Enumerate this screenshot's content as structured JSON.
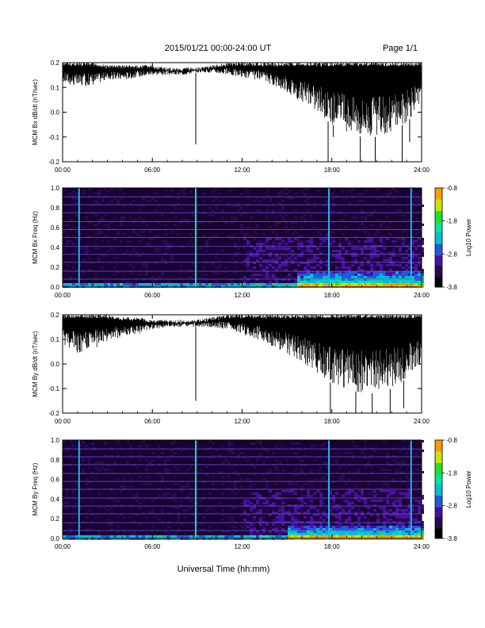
{
  "header": {
    "title": "2015/01/21  00:00-24:00 UT",
    "page": "Page 1/1"
  },
  "footer": {
    "xlabel": "Universal Time (hh:mm)"
  },
  "colors": {
    "waveform": "#000000",
    "spectrogram_background": "#1a0033",
    "colormap": [
      "#000000",
      "#2a0a50",
      "#4b0fa0",
      "#1f5ad8",
      "#00bcd4",
      "#00e5a0",
      "#22e022",
      "#c8e400",
      "#ff9a00",
      "#ff0000"
    ]
  },
  "chart_data": [
    {
      "type": "line",
      "panel": "bx-waveform",
      "ylabel": "MCM Bx dB/dt (nT/sec)",
      "xticks": [
        "00:00",
        "06:00",
        "12:00",
        "18:00",
        "24:00"
      ],
      "yticks": [
        "-0.2",
        "-0.1",
        "0.0",
        "0.1",
        "0.2"
      ],
      "xlim": [
        0,
        24
      ],
      "ylim": [
        -0.2,
        0.2
      ],
      "envelope_hours": [
        0,
        1,
        2,
        3,
        4,
        5,
        6,
        7,
        8,
        9,
        10,
        11,
        12,
        13,
        14,
        15,
        16,
        17,
        18,
        19,
        20,
        21,
        22,
        23,
        24
      ],
      "envelope_upper": [
        0.2,
        0.2,
        0.2,
        0.19,
        0.19,
        0.19,
        0.19,
        0.18,
        0.18,
        0.18,
        0.19,
        0.2,
        0.2,
        0.2,
        0.2,
        0.2,
        0.2,
        0.2,
        0.2,
        0.2,
        0.2,
        0.2,
        0.2,
        0.2,
        0.2
      ],
      "envelope_lower": [
        0.12,
        0.1,
        0.11,
        0.13,
        0.13,
        0.14,
        0.15,
        0.15,
        0.15,
        0.16,
        0.16,
        0.15,
        0.14,
        0.13,
        0.11,
        0.08,
        0.04,
        0.0,
        -0.05,
        -0.08,
        -0.1,
        -0.1,
        -0.08,
        -0.04,
        0.02
      ],
      "spikes": [
        {
          "t": 8.9,
          "y": -0.13
        },
        {
          "t": 17.75,
          "y": -0.2
        },
        {
          "t": 18.1,
          "y": -0.1
        },
        {
          "t": 19.9,
          "y": -0.2
        },
        {
          "t": 20.9,
          "y": -0.2
        },
        {
          "t": 22.7,
          "y": -0.2
        },
        {
          "t": 23.2,
          "y": -0.12
        }
      ]
    },
    {
      "type": "heatmap",
      "panel": "bx-spectrogram",
      "ylabel": "MCM Bx Freq (Hz)",
      "xticks": [
        "00:00",
        "06:00",
        "12:00",
        "18:00",
        "24:00"
      ],
      "yticks": [
        "0.0",
        "0.2",
        "0.4",
        "0.6",
        "0.8",
        "1.0"
      ],
      "xlim": [
        0,
        24
      ],
      "ylim": [
        0,
        1.0
      ],
      "colorbar_label": "Log10 Power",
      "colorbar_ticks": [
        "-0.8",
        "-1.8",
        "-2.8",
        "-3.8"
      ],
      "colorbar_range": [
        -3.8,
        -0.8
      ],
      "harmonic_lines_hz": [
        0.08,
        0.16,
        0.25,
        0.33,
        0.41,
        0.5,
        0.58,
        0.66,
        0.75,
        0.83,
        0.91,
        1.0
      ],
      "vertical_events_hr": [
        1.1,
        8.9,
        17.8,
        23.3
      ],
      "low_freq_activity": {
        "from_hr": 15.5,
        "to_hr": 24,
        "max_hz": 0.18
      }
    },
    {
      "type": "line",
      "panel": "by-waveform",
      "ylabel": "MCM By dB/dt (nT/sec)",
      "xticks": [
        "00:00",
        "06:00",
        "12:00",
        "18:00",
        "24:00"
      ],
      "yticks": [
        "-0.2",
        "-0.1",
        "0.0",
        "0.1",
        "0.2"
      ],
      "xlim": [
        0,
        24
      ],
      "ylim": [
        -0.2,
        0.2
      ],
      "envelope_hours": [
        0,
        1,
        2,
        3,
        4,
        5,
        6,
        7,
        8,
        9,
        10,
        11,
        12,
        13,
        14,
        15,
        16,
        17,
        18,
        19,
        20,
        21,
        22,
        23,
        24
      ],
      "envelope_upper": [
        0.2,
        0.2,
        0.2,
        0.2,
        0.19,
        0.19,
        0.18,
        0.18,
        0.18,
        0.18,
        0.19,
        0.2,
        0.2,
        0.2,
        0.2,
        0.2,
        0.2,
        0.2,
        0.2,
        0.2,
        0.2,
        0.2,
        0.2,
        0.2,
        0.2
      ],
      "envelope_lower": [
        0.08,
        0.04,
        0.06,
        0.09,
        0.11,
        0.12,
        0.14,
        0.15,
        0.15,
        0.15,
        0.15,
        0.14,
        0.12,
        0.1,
        0.07,
        0.04,
        0.0,
        -0.04,
        -0.08,
        -0.1,
        -0.12,
        -0.12,
        -0.1,
        -0.06,
        0.0
      ],
      "spikes": [
        {
          "t": 8.9,
          "y": -0.15
        },
        {
          "t": 17.9,
          "y": -0.2
        },
        {
          "t": 19.6,
          "y": -0.2
        },
        {
          "t": 20.7,
          "y": -0.2
        },
        {
          "t": 21.9,
          "y": -0.2
        },
        {
          "t": 22.8,
          "y": -0.18
        }
      ]
    },
    {
      "type": "heatmap",
      "panel": "by-spectrogram",
      "ylabel": "MCM By Freq (Hz)",
      "xticks": [
        "00:00",
        "06:00",
        "12:00",
        "18:00",
        "24:00"
      ],
      "yticks": [
        "0.0",
        "0.2",
        "0.4",
        "0.6",
        "0.8",
        "1.0"
      ],
      "xlim": [
        0,
        24
      ],
      "ylim": [
        0,
        1.0
      ],
      "colorbar_label": "Log10 Power",
      "colorbar_ticks": [
        "-0.8",
        "-1.8",
        "-2.8",
        "-3.8"
      ],
      "colorbar_range": [
        -3.8,
        -0.8
      ],
      "harmonic_lines_hz": [
        0.08,
        0.16,
        0.25,
        0.33,
        0.41,
        0.5,
        0.58,
        0.66,
        0.75,
        0.83,
        0.91,
        1.0
      ],
      "vertical_events_hr": [
        1.1,
        8.9,
        17.8,
        23.3
      ],
      "low_freq_activity": {
        "from_hr": 15.0,
        "to_hr": 24,
        "max_hz": 0.15
      }
    }
  ]
}
